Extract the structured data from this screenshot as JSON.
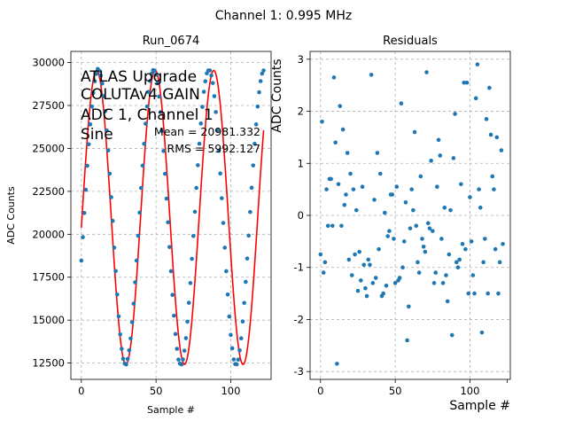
{
  "suptitle": "Channel 1: 0.995 MHz",
  "colors": {
    "points": "#1f77b4",
    "fit": "#ff0000",
    "grid": "#b0b0b0"
  },
  "chart_data": [
    {
      "type": "scatter",
      "title": "Run_0674",
      "xlabel": "Sample #",
      "ylabel": "ADC Counts",
      "xlim": [
        -7,
        127
      ],
      "ylim": [
        11550,
        30650
      ],
      "xticks": [
        0,
        50,
        100
      ],
      "yticks": [
        12500,
        15000,
        17500,
        20000,
        22500,
        25000,
        27500,
        30000
      ],
      "annotation_lines": [
        "ATLAS Upgrade",
        "COLUTAv4 GAIN",
        "ADC 1, Channel 1",
        "Sine"
      ],
      "stats": {
        "mean": "Mean = 20981.332",
        "rms": "RMS = 5992.127"
      },
      "fit": {
        "amplitude": 8560,
        "offset": 20981,
        "period": 39.2,
        "phase_deg": 4
      },
      "series": [
        {
          "name": "data",
          "style": "points",
          "x": [
            0,
            1,
            2,
            3,
            4,
            5,
            6,
            7,
            8,
            9,
            10,
            11,
            12,
            13,
            14,
            15,
            16,
            17,
            18,
            19,
            20,
            21,
            22,
            23,
            24,
            25,
            26,
            27,
            28,
            29,
            30,
            31,
            32,
            33,
            34,
            35,
            36,
            37,
            38,
            39,
            40,
            41,
            42,
            43,
            44,
            45,
            46,
            47,
            48,
            49,
            50,
            51,
            52,
            53,
            54,
            55,
            56,
            57,
            58,
            59,
            60,
            61,
            62,
            63,
            64,
            65,
            66,
            67,
            68,
            69,
            70,
            71,
            72,
            73,
            74,
            75,
            76,
            77,
            78,
            79,
            80,
            81,
            82,
            83,
            84,
            85,
            86,
            87,
            88,
            89,
            90,
            91,
            92,
            93,
            94,
            95,
            96,
            97,
            98,
            99,
            100,
            101,
            102,
            103,
            104,
            105,
            106,
            107,
            108,
            109,
            110,
            111,
            112,
            113,
            114,
            115,
            116,
            117,
            118,
            119,
            120,
            121,
            122
          ],
          "y": [
            18470,
            19830,
            21240,
            22590,
            23990,
            25240,
            26400,
            27440,
            28240,
            28910,
            29340,
            29630,
            29520,
            29250,
            28780,
            28040,
            27170,
            26040,
            24880,
            23530,
            22160,
            20780,
            19220,
            17860,
            16490,
            15220,
            14170,
            13330,
            12750,
            12470,
            12420,
            12740,
            13240,
            13930,
            14880,
            15960,
            17200,
            18470,
            19910,
            21260,
            22700,
            24000,
            25270,
            26440,
            27440,
            28290,
            28930,
            29350,
            29560,
            29530,
            29290,
            28800,
            28020,
            27110,
            26020,
            24850,
            23520,
            22080,
            20700,
            19260,
            17850,
            16470,
            15260,
            14190,
            13330,
            12700,
            12470,
            12420,
            12710,
            13220,
            13950,
            14910,
            16010,
            17160,
            18570,
            19900,
            21310,
            22700,
            24020,
            25270,
            26450,
            27420,
            28300,
            28910,
            29370,
            29540,
            29540,
            29250,
            28810,
            28040,
            27120,
            26060,
            24860,
            23540,
            22100,
            20660,
            19220,
            17850,
            16490,
            15210,
            14140,
            13360,
            12710,
            12440,
            12430,
            12700,
            13240,
            13940,
            14920,
            16000,
            17230,
            18590,
            19920,
            21300,
            22710,
            24010,
            25270,
            26400,
            27440,
            28270,
            28920,
            29360,
            29540
          ]
        },
        {
          "name": "fit",
          "style": "line",
          "x": [],
          "y": []
        }
      ]
    },
    {
      "type": "scatter",
      "title": "Residuals",
      "xlabel": "Sample #",
      "ylabel": "ADC Counts",
      "xlim": [
        -7,
        127
      ],
      "ylim": [
        -3.15,
        3.15
      ],
      "xticks": [
        0,
        50,
        100
      ],
      "yticks": [
        -3,
        -2,
        -1,
        0,
        1,
        2,
        3
      ],
      "series": [
        {
          "name": "residuals",
          "style": "points",
          "x": [
            0,
            1,
            2,
            3,
            4,
            5,
            6,
            7,
            8,
            9,
            10,
            11,
            12,
            13,
            14,
            15,
            16,
            17,
            18,
            19,
            20,
            21,
            22,
            23,
            24,
            25,
            26,
            27,
            28,
            29,
            30,
            31,
            32,
            33,
            34,
            35,
            36,
            37,
            38,
            39,
            40,
            41,
            42,
            43,
            44,
            45,
            46,
            47,
            48,
            49,
            50,
            51,
            52,
            53,
            54,
            55,
            56,
            57,
            58,
            59,
            60,
            61,
            62,
            63,
            64,
            65,
            66,
            67,
            68,
            69,
            70,
            71,
            72,
            73,
            74,
            75,
            76,
            77,
            78,
            79,
            80,
            81,
            82,
            83,
            84,
            85,
            86,
            87,
            88,
            89,
            90,
            91,
            92,
            93,
            94,
            95,
            96,
            97,
            98,
            99,
            100,
            101,
            102,
            103,
            104,
            105,
            106,
            107,
            108,
            109,
            110,
            111,
            112,
            113,
            114,
            115,
            116,
            117,
            118,
            119,
            120,
            121,
            122
          ],
          "y": [
            -0.75,
            1.8,
            -1.1,
            -0.9,
            0.5,
            -0.2,
            0.7,
            0.7,
            -0.2,
            2.65,
            1.4,
            -2.85,
            0.6,
            2.1,
            -0.2,
            1.65,
            0.2,
            0.4,
            1.2,
            -0.85,
            0.8,
            -1.15,
            0.5,
            -0.75,
            0.1,
            -1.45,
            -0.7,
            -1.25,
            0.55,
            -0.95,
            -1.4,
            -1.55,
            -0.85,
            -0.95,
            2.7,
            -1.3,
            0.3,
            -1.2,
            1.2,
            -0.65,
            0.8,
            -1.55,
            -1.5,
            0.05,
            -1.35,
            -0.4,
            -0.3,
            0.4,
            0.4,
            -0.45,
            -1.3,
            0.55,
            -1.25,
            -1.2,
            2.15,
            -1.0,
            -0.5,
            0.25,
            -2.4,
            -1.75,
            -0.25,
            0.5,
            0.1,
            1.6,
            -0.2,
            -0.9,
            -1.1,
            0.75,
            -0.45,
            -0.6,
            -0.7,
            2.75,
            -0.15,
            -0.25,
            1.05,
            -0.3,
            -1.3,
            -1.1,
            0.55,
            1.45,
            1.15,
            -0.45,
            -1.3,
            0.15,
            -1.15,
            -1.65,
            -0.75,
            0.1,
            -2.3,
            1.1,
            1.95,
            -0.9,
            -1.0,
            -0.85,
            0.6,
            -0.55,
            2.55,
            -0.65,
            2.55,
            -1.5,
            0.35,
            -0.5,
            -1.15,
            -1.5,
            2.25,
            2.9,
            0.5,
            0.15,
            -2.25,
            -0.9,
            -0.45,
            1.85,
            -1.5,
            2.45,
            1.55,
            0.75,
            0.5,
            -0.65,
            1.5,
            -1.5,
            -0.9,
            1.25,
            -0.55
          ]
        }
      ]
    }
  ]
}
